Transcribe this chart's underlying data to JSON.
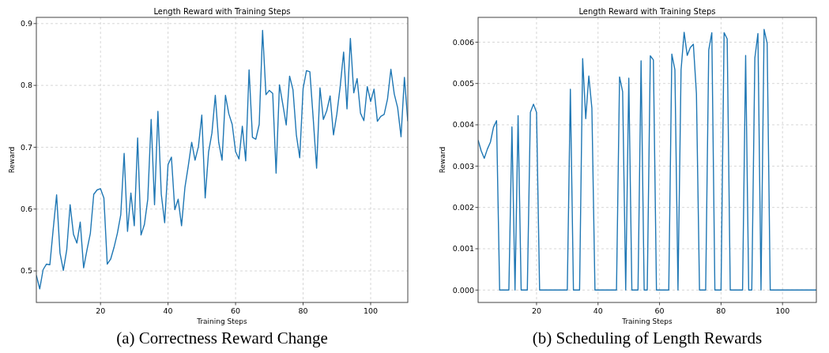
{
  "chart_data": [
    {
      "type": "line",
      "title": "Length Reward with Training Steps",
      "xlabel": "Training Steps",
      "ylabel": "Reward",
      "annotations": [
        "(a) Correctness Reward Change"
      ],
      "grid": true,
      "xlim": [
        1,
        111
      ],
      "xticks": [
        20,
        40,
        60,
        80,
        100
      ],
      "ylim": [
        0.449,
        0.91
      ],
      "yticks": [
        0.5,
        0.6,
        0.7,
        0.8,
        0.9
      ],
      "series": [
        {
          "color": "#1f77b4",
          "x": [
            1,
            2,
            3,
            4,
            5,
            6,
            7,
            8,
            9,
            10,
            11,
            12,
            13,
            14,
            15,
            16,
            17,
            18,
            19,
            20,
            21,
            22,
            23,
            24,
            25,
            26,
            27,
            28,
            29,
            30,
            31,
            32,
            33,
            34,
            35,
            36,
            37,
            38,
            39,
            40,
            41,
            42,
            43,
            44,
            45,
            46,
            47,
            48,
            49,
            50,
            51,
            52,
            53,
            54,
            55,
            56,
            57,
            58,
            59,
            60,
            61,
            62,
            63,
            64,
            65,
            66,
            67,
            68,
            69,
            70,
            71,
            72,
            73,
            74,
            75,
            76,
            77,
            78,
            79,
            80,
            81,
            82,
            83,
            84,
            85,
            86,
            87,
            88,
            89,
            90,
            91,
            92,
            93,
            94,
            95,
            96,
            97,
            98,
            99,
            100,
            101,
            102,
            103,
            104,
            105,
            106,
            107,
            108,
            109,
            110,
            111
          ],
          "values": [
            0.493,
            0.471,
            0.502,
            0.511,
            0.51,
            0.568,
            0.623,
            0.529,
            0.501,
            0.534,
            0.607,
            0.559,
            0.545,
            0.579,
            0.505,
            0.534,
            0.561,
            0.624,
            0.631,
            0.633,
            0.618,
            0.511,
            0.519,
            0.538,
            0.561,
            0.591,
            0.69,
            0.564,
            0.626,
            0.573,
            0.715,
            0.558,
            0.575,
            0.616,
            0.745,
            0.607,
            0.758,
            0.624,
            0.578,
            0.672,
            0.684,
            0.599,
            0.616,
            0.573,
            0.635,
            0.67,
            0.708,
            0.679,
            0.701,
            0.752,
            0.618,
            0.692,
            0.723,
            0.784,
            0.708,
            0.679,
            0.784,
            0.754,
            0.737,
            0.693,
            0.681,
            0.734,
            0.678,
            0.825,
            0.716,
            0.713,
            0.737,
            0.889,
            0.785,
            0.792,
            0.787,
            0.658,
            0.801,
            0.769,
            0.736,
            0.815,
            0.793,
            0.72,
            0.683,
            0.795,
            0.824,
            0.822,
            0.746,
            0.666,
            0.796,
            0.745,
            0.759,
            0.783,
            0.72,
            0.754,
            0.799,
            0.854,
            0.762,
            0.876,
            0.788,
            0.811,
            0.755,
            0.743,
            0.798,
            0.774,
            0.794,
            0.742,
            0.75,
            0.753,
            0.778,
            0.826,
            0.786,
            0.764,
            0.717,
            0.813,
            0.742
          ]
        }
      ]
    },
    {
      "type": "line",
      "title": "Length Reward with Training Steps",
      "xlabel": "Training Steps",
      "ylabel": "Reward",
      "annotations": [
        "(b) Scheduling of Length Rewards"
      ],
      "grid": true,
      "xlim": [
        1,
        111
      ],
      "xticks": [
        20,
        40,
        60,
        80,
        100
      ],
      "ylim": [
        -0.0003,
        0.0066
      ],
      "yticks": [
        {
          "value": 0,
          "label": "0.000"
        },
        {
          "value": 0.001,
          "label": "0.001"
        },
        {
          "value": 0.002,
          "label": "0.002"
        },
        {
          "value": 0.003,
          "label": "0.003"
        },
        {
          "value": 0.004,
          "label": "0.004"
        },
        {
          "value": 0.005,
          "label": "0.005"
        },
        {
          "value": 0.006,
          "label": "0.006"
        }
      ],
      "series": [
        {
          "color": "#1f77b4",
          "x": [
            1,
            2,
            3,
            4,
            5,
            6,
            7,
            8,
            9,
            10,
            11,
            12,
            13,
            14,
            15,
            16,
            17,
            18,
            19,
            20,
            21,
            22,
            23,
            24,
            25,
            26,
            27,
            28,
            29,
            30,
            31,
            32,
            33,
            34,
            35,
            36,
            37,
            38,
            39,
            40,
            41,
            42,
            43,
            44,
            45,
            46,
            47,
            48,
            49,
            50,
            51,
            52,
            53,
            54,
            55,
            56,
            57,
            58,
            59,
            60,
            61,
            62,
            63,
            64,
            65,
            66,
            67,
            68,
            69,
            70,
            71,
            72,
            73,
            74,
            75,
            76,
            77,
            78,
            79,
            80,
            81,
            82,
            83,
            84,
            85,
            86,
            87,
            88,
            89,
            90,
            91,
            92,
            93,
            94,
            95,
            96,
            97,
            98,
            99,
            100,
            101,
            102,
            103,
            104,
            105,
            106,
            107,
            108,
            109,
            110,
            111
          ],
          "values": [
            0.00363,
            0.00337,
            0.00319,
            0.00341,
            0.00358,
            0.00394,
            0.0041,
            0,
            0,
            0,
            0,
            0.00395,
            0,
            0.00422,
            0,
            0,
            0,
            0.0043,
            0.0045,
            0.0043,
            0,
            0,
            0,
            0,
            0,
            0,
            0,
            0,
            0,
            0,
            0.00486,
            0,
            0,
            0,
            0.0056,
            0.00415,
            0.00518,
            0.0044,
            0,
            0,
            0,
            0,
            0,
            0,
            0,
            0,
            0.00516,
            0.0048,
            0,
            0.00513,
            0,
            0,
            0,
            0.00555,
            0,
            0,
            0.00567,
            0.00557,
            0,
            0,
            0,
            0,
            0,
            0.00571,
            0.00533,
            0,
            0.00533,
            0.00624,
            0.00568,
            0.00587,
            0.00595,
            0.00475,
            0,
            0,
            0,
            0.00581,
            0.00623,
            0,
            0,
            0,
            0.00623,
            0.00608,
            0,
            0,
            0,
            0,
            0,
            0.00568,
            0,
            0,
            0.00562,
            0.00621,
            0,
            0.00631,
            0.00597,
            0,
            0,
            0,
            0,
            0,
            0,
            0,
            0,
            0,
            0,
            0,
            0,
            0,
            0,
            0,
            0
          ]
        }
      ]
    }
  ]
}
